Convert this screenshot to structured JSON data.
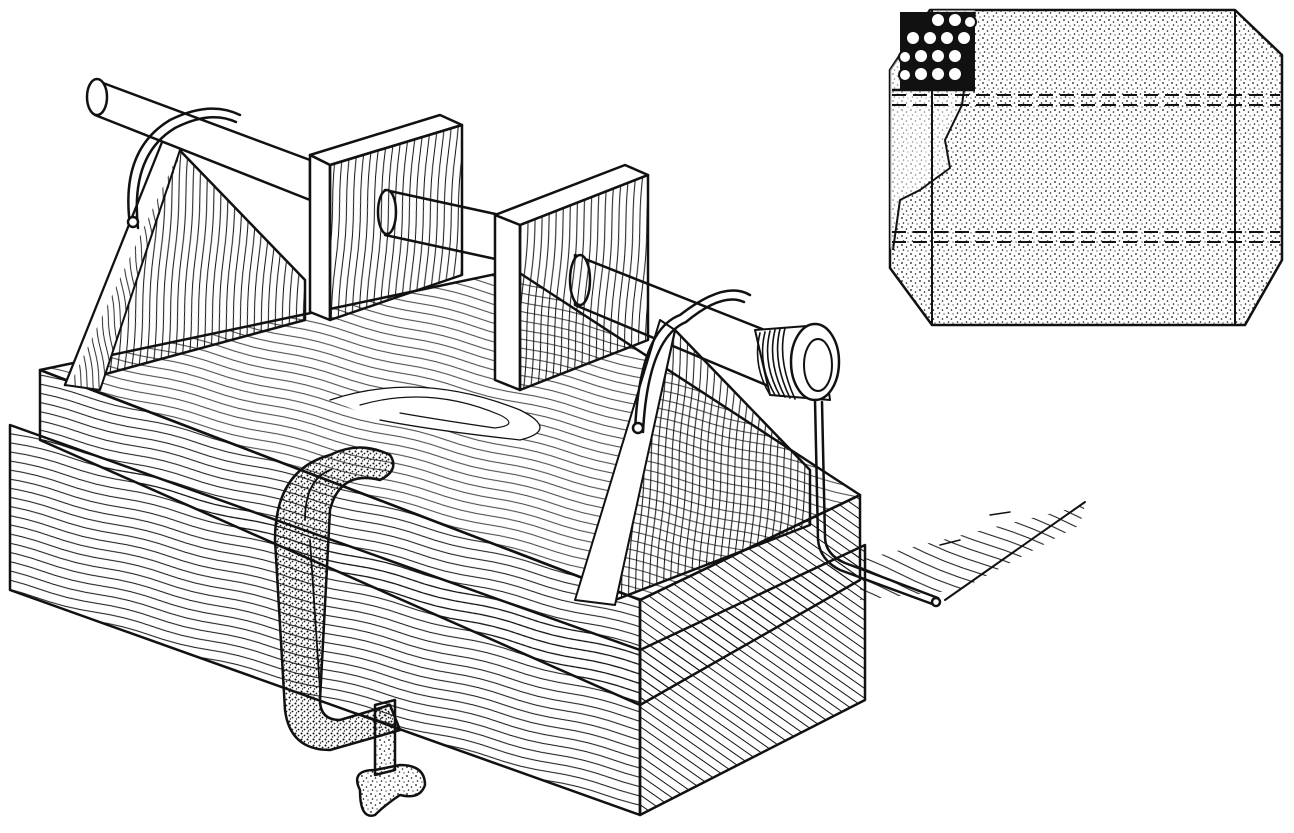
{
  "figure": {
    "main_illustration": "coil-winding-jig",
    "inset_illustration": "wrapped-coil-detail",
    "ink_color": "#111111",
    "paper_color": "#ffffff"
  }
}
